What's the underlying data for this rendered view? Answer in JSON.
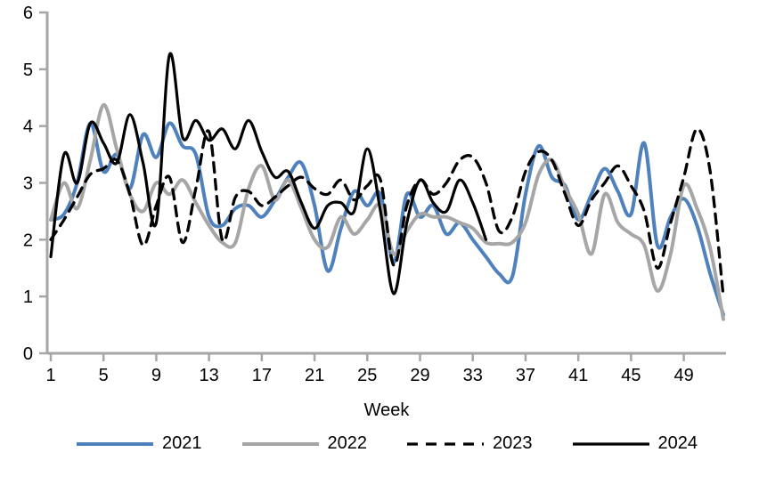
{
  "chart_data": {
    "type": "line",
    "title": "",
    "xlabel": "Week",
    "ylabel": "",
    "x_unit": "week",
    "xlim": [
      1,
      52
    ],
    "ylim": [
      0,
      6
    ],
    "xticks": [
      1,
      5,
      9,
      13,
      17,
      21,
      25,
      29,
      33,
      37,
      41,
      45,
      49
    ],
    "yticks": [
      0,
      1,
      2,
      3,
      4,
      5,
      6
    ],
    "grid": false,
    "legend_position": "bottom",
    "axis_color": "#a6a6a6",
    "smooth_lines": true,
    "series": [
      {
        "name": "2021",
        "color": "#4f81bd",
        "style": "solid",
        "width": 4,
        "start_week": 1,
        "values": [
          2.35,
          2.45,
          3.0,
          4.05,
          3.2,
          3.5,
          2.9,
          3.85,
          3.45,
          4.05,
          3.65,
          3.5,
          2.4,
          2.25,
          2.55,
          2.6,
          2.4,
          2.7,
          3.1,
          3.35,
          2.6,
          1.45,
          2.2,
          2.85,
          2.6,
          2.8,
          1.6,
          2.8,
          2.4,
          2.6,
          2.1,
          2.3,
          2.0,
          1.7,
          1.4,
          1.35,
          2.8,
          3.65,
          3.1,
          2.95,
          2.35,
          2.8,
          3.25,
          2.85,
          2.45,
          3.7,
          1.9,
          2.4,
          2.72,
          2.25,
          1.4,
          0.68
        ]
      },
      {
        "name": "2022",
        "color": "#a6a6a6",
        "style": "solid",
        "width": 4,
        "start_week": 1,
        "values": [
          2.35,
          3.0,
          2.55,
          3.4,
          4.37,
          3.6,
          2.8,
          2.5,
          3.0,
          2.8,
          3.05,
          2.65,
          2.25,
          1.95,
          1.95,
          2.9,
          3.3,
          2.7,
          3.05,
          2.55,
          2.0,
          1.87,
          2.4,
          2.1,
          2.35,
          2.6,
          1.75,
          2.15,
          2.45,
          2.4,
          2.4,
          2.3,
          2.2,
          1.95,
          1.93,
          1.95,
          2.3,
          3.15,
          3.4,
          2.9,
          2.45,
          1.75,
          2.8,
          2.3,
          2.1,
          1.9,
          1.1,
          1.75,
          2.95,
          2.55,
          1.85,
          0.6
        ]
      },
      {
        "name": "2023",
        "color": "#000000",
        "style": "dashed",
        "width": 3.3,
        "start_week": 1,
        "values": [
          2.0,
          2.35,
          2.75,
          3.15,
          3.25,
          3.4,
          2.8,
          1.9,
          2.6,
          3.1,
          1.95,
          2.9,
          3.9,
          2.0,
          2.75,
          2.85,
          2.6,
          2.75,
          2.95,
          3.1,
          2.9,
          2.8,
          3.05,
          2.7,
          2.95,
          3.05,
          1.55,
          2.6,
          3.05,
          2.8,
          3.0,
          3.4,
          3.45,
          3.0,
          2.15,
          2.4,
          3.2,
          3.55,
          3.4,
          2.8,
          2.25,
          2.7,
          3.0,
          3.3,
          2.95,
          2.5,
          1.5,
          2.3,
          3.1,
          3.95,
          3.2,
          1.0
        ]
      },
      {
        "name": "2024",
        "color": "#000000",
        "style": "solid",
        "width": 3.2,
        "start_week": 1,
        "values": [
          1.7,
          3.5,
          3.0,
          4.05,
          3.7,
          3.35,
          4.2,
          3.35,
          2.3,
          5.25,
          3.8,
          4.1,
          3.75,
          3.95,
          3.6,
          4.1,
          3.55,
          3.1,
          3.2,
          2.65,
          2.2,
          2.6,
          2.65,
          2.5,
          3.6,
          2.5,
          1.05,
          2.3,
          3.05,
          2.65,
          2.5,
          3.05,
          2.65,
          2.0
        ]
      }
    ]
  }
}
